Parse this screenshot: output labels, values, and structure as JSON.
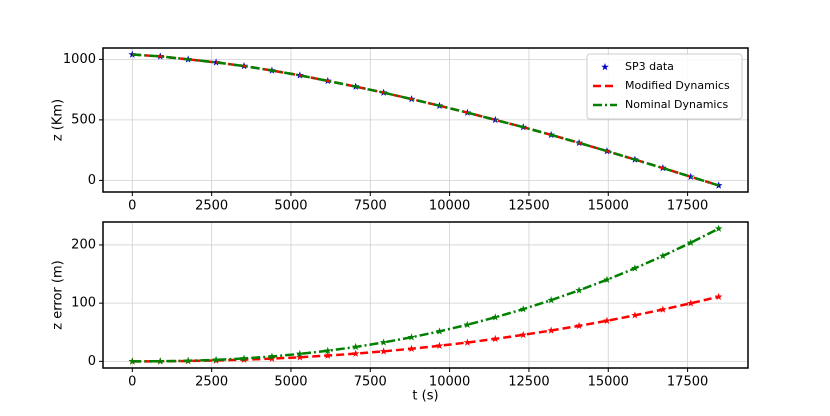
{
  "chart_data": [
    {
      "type": "line",
      "y_label": "z (Km)",
      "x": [
        0,
        880,
        1760,
        2640,
        3520,
        4400,
        5280,
        6160,
        7040,
        7920,
        8800,
        9680,
        10560,
        11440,
        12320,
        13200,
        14080,
        14960,
        15840,
        16720,
        17600,
        18480
      ],
      "xlim": [
        -924,
        19404
      ],
      "xticks": [
        0,
        2500,
        5000,
        7500,
        10000,
        12500,
        15000,
        17500
      ],
      "ylim": [
        -96,
        1094
      ],
      "yticks": [
        0,
        500,
        1000
      ],
      "grid": true,
      "legend": "upper right",
      "series": [
        {
          "name": "SP3 data",
          "color": "#0000cc",
          "style": "marker",
          "marker": "star",
          "values": [
            1040,
            1025,
            1000,
            975,
            945,
            908,
            868,
            822,
            775,
            725,
            672,
            617,
            560,
            500,
            440,
            376,
            310,
            242,
            172,
            102,
            30,
            -42
          ]
        },
        {
          "name": "Modified Dynamics",
          "color": "#ff0000",
          "style": "dashed",
          "values": [
            1040,
            1025,
            1000,
            975,
            945,
            908,
            868,
            822,
            775,
            725,
            672,
            617,
            560,
            500,
            440,
            376,
            310,
            242,
            172,
            102,
            30,
            -42
          ]
        },
        {
          "name": "Nominal Dynamics",
          "color": "#008000",
          "style": "dashdot",
          "values": [
            1040,
            1025,
            1000,
            975,
            945,
            908,
            868,
            822,
            775,
            725,
            672,
            617,
            560,
            500,
            440,
            376,
            310,
            242,
            172,
            102,
            30,
            -42
          ]
        }
      ]
    },
    {
      "type": "line",
      "x_label": "t (s)",
      "y_label": "z error (m)",
      "x": [
        0,
        880,
        1760,
        2640,
        3520,
        4400,
        5280,
        6160,
        7040,
        7920,
        8800,
        9680,
        10560,
        11440,
        12320,
        13200,
        14080,
        14960,
        15840,
        16720,
        17600,
        18480
      ],
      "xlim": [
        -924,
        19404
      ],
      "xticks": [
        0,
        2500,
        5000,
        7500,
        10000,
        12500,
        15000,
        17500
      ],
      "ylim": [
        -11.4,
        239.4
      ],
      "yticks": [
        0,
        100,
        200
      ],
      "grid": true,
      "series": [
        {
          "color": "#ff0000",
          "style": "dashed",
          "marker": "star",
          "values": [
            0,
            0.1,
            0.6,
            1.5,
            2.9,
            4.7,
            7.0,
            9.9,
            13.3,
            17.2,
            21.7,
            26.8,
            32.4,
            38.6,
            45.5,
            53.0,
            61.0,
            69.7,
            79.1,
            89.1,
            99.7,
            111
          ]
        },
        {
          "color": "#008000",
          "style": "dashdot",
          "marker": "star",
          "values": [
            0,
            0.2,
            1.0,
            2.6,
            5.0,
            8.4,
            12.8,
            18.2,
            24.8,
            32.5,
            41.4,
            51.5,
            62.9,
            75.7,
            89.7,
            105.2,
            122,
            140.2,
            159.9,
            181.1,
            203.8,
            228
          ]
        }
      ]
    }
  ]
}
